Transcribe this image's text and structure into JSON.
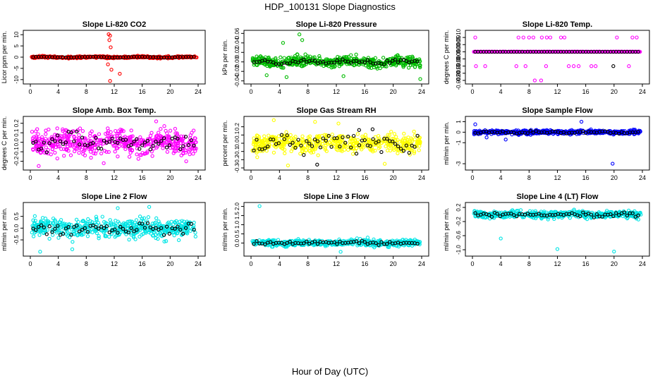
{
  "page": {
    "title": "HDP_100131  Slope Diagnostics",
    "xlabel": "Hour of Day (UTC)"
  },
  "chart_data": [
    {
      "type": "scatter",
      "title": "Slope Li-820 CO2",
      "ylabel": "Licor ppm per min.",
      "xlim": [
        0,
        24
      ],
      "ylim": [
        -11,
        11
      ],
      "xticks": [
        0,
        4,
        8,
        12,
        16,
        20,
        24
      ],
      "yticks": [
        -10,
        -5,
        0,
        5,
        10
      ],
      "ytick_labels": [
        "-10",
        "-5",
        "0",
        "5",
        "10"
      ],
      "color": "#ff0000",
      "spread": 0.3,
      "wave_amp": 0.15,
      "outliers": [
        [
          11.2,
          10.2
        ],
        [
          11.4,
          9.6
        ],
        [
          11.3,
          7.6
        ],
        [
          11.5,
          4.4
        ],
        [
          11.1,
          -3.2
        ],
        [
          11.6,
          -5.6
        ],
        [
          12.8,
          -7.4
        ],
        [
          11.4,
          -10.6
        ]
      ],
      "black_spread": 0.05
    },
    {
      "type": "scatter",
      "title": "Slope Li-820 Pressure",
      "ylabel": "kPa per min.",
      "xlim": [
        0,
        24
      ],
      "ylim": [
        -0.042,
        0.062
      ],
      "xticks": [
        0,
        4,
        8,
        12,
        16,
        20,
        24
      ],
      "yticks": [
        -0.04,
        -0.02,
        0.0,
        0.02,
        0.04,
        0.06
      ],
      "ytick_labels": [
        "-0.04",
        "-0.02",
        "0.00",
        "0.02",
        "0.04",
        "0.06"
      ],
      "color": "#00bb00",
      "spread": 0.008,
      "wave_amp": 0.002,
      "outliers": [
        [
          6.8,
          0.058
        ],
        [
          7.2,
          0.046
        ],
        [
          4.5,
          0.04
        ],
        [
          2.2,
          -0.028
        ],
        [
          5.0,
          -0.032
        ],
        [
          23.8,
          -0.036
        ],
        [
          13.0,
          -0.03
        ]
      ],
      "black_spread": 0.003
    },
    {
      "type": "scatter",
      "title": "Slope Li-820 Temp.",
      "ylabel": "degrees C per min.",
      "xlim": [
        0,
        24
      ],
      "ylim": [
        -0.0021,
        0.00135
      ],
      "xticks": [
        0,
        4,
        8,
        12,
        16,
        20,
        24
      ],
      "yticks": [
        -0.002,
        -0.0015,
        -0.001,
        -0.0005,
        0.0,
        0.0005,
        0.001
      ],
      "ytick_labels": [
        "-0.0020",
        "-0.0015",
        "-0.0010",
        "-0.0005",
        "0.0000",
        "0.0005",
        "0.0010"
      ],
      "color": "#ff00ff",
      "spread": 0.0,
      "wave_amp": 0.0,
      "outliers": [
        [
          0.4,
          0.001
        ],
        [
          6.5,
          0.001
        ],
        [
          7.2,
          0.001
        ],
        [
          8.0,
          0.001
        ],
        [
          8.6,
          0.001
        ],
        [
          9.8,
          0.001
        ],
        [
          10.5,
          0.001
        ],
        [
          11.0,
          0.001
        ],
        [
          12.5,
          0.001
        ],
        [
          13.0,
          0.001
        ],
        [
          20.4,
          0.001
        ],
        [
          22.6,
          0.001
        ],
        [
          23.2,
          0.001
        ],
        [
          0.5,
          -0.001
        ],
        [
          1.8,
          -0.001
        ],
        [
          6.2,
          -0.001
        ],
        [
          7.5,
          -0.001
        ],
        [
          10.4,
          -0.001
        ],
        [
          13.6,
          -0.001
        ],
        [
          14.3,
          -0.001
        ],
        [
          15.0,
          -0.001
        ],
        [
          16.8,
          -0.001
        ],
        [
          17.4,
          -0.001
        ],
        [
          22.1,
          -0.001
        ],
        [
          8.8,
          -0.002
        ],
        [
          9.7,
          -0.002
        ]
      ],
      "black_outliers": [
        [
          19.9,
          -0.001
        ]
      ],
      "black_spread": 0.0
    },
    {
      "type": "scatter",
      "title": "Slope Amb. Box Temp.",
      "ylabel": "degrees C per min.",
      "xlim": [
        0,
        24
      ],
      "ylim": [
        -0.27,
        0.25
      ],
      "xticks": [
        0,
        4,
        8,
        12,
        16,
        20,
        24
      ],
      "yticks": [
        -0.2,
        -0.1,
        0.0,
        0.1,
        0.2
      ],
      "ytick_labels": [
        "-0.2",
        "-0.1",
        "0.0",
        "0.1",
        "0.2"
      ],
      "color": "#ff00ff",
      "spread": 0.09,
      "wave_amp": 0.02,
      "outliers": [
        [
          1.2,
          -0.25
        ],
        [
          10.5,
          -0.22
        ],
        [
          22.3,
          -0.2
        ],
        [
          18.0,
          0.22
        ]
      ],
      "black_spread": 0.06
    },
    {
      "type": "scatter",
      "title": "Slope Gas Stream RH",
      "ylabel": "percent per min.",
      "xlim": [
        0,
        24
      ],
      "ylim": [
        -0.3,
        0.3
      ],
      "xticks": [
        0,
        4,
        8,
        12,
        16,
        20,
        24
      ],
      "yticks": [
        -0.3,
        -0.2,
        -0.1,
        0.0,
        0.1,
        0.2
      ],
      "ytick_labels": [
        "-0.3",
        "-0.2",
        "-0.1",
        "0.0",
        "0.1",
        "0.2"
      ],
      "color": "#ffff00",
      "spread": 0.08,
      "wave_amp": 0.02,
      "outliers": [
        [
          3.2,
          0.28
        ],
        [
          5.2,
          -0.27
        ],
        [
          9.0,
          0.26
        ],
        [
          18.8,
          -0.25
        ],
        [
          12.3,
          0.24
        ]
      ],
      "black_outliers": [
        [
          9.3,
          -0.26
        ],
        [
          17.1,
          0.17
        ],
        [
          15.2,
          0.16
        ]
      ],
      "black_spread": 0.08
    },
    {
      "type": "scatter",
      "title": "Slope Sample Flow",
      "ylabel": "ml/min per min.",
      "xlim": [
        0,
        24
      ],
      "ylim": [
        -3.4,
        1.3
      ],
      "xticks": [
        0,
        4,
        8,
        12,
        16,
        20,
        24
      ],
      "yticks": [
        -3,
        -1,
        0,
        1
      ],
      "ytick_labels": [
        "-3",
        "-1",
        "0",
        "1"
      ],
      "color": "#0000ff",
      "spread": 0.14,
      "wave_amp": 0.03,
      "outliers": [
        [
          19.8,
          -3.0
        ],
        [
          15.4,
          1.0
        ],
        [
          0.4,
          0.75
        ],
        [
          4.7,
          -0.7
        ],
        [
          2.0,
          -0.5
        ]
      ],
      "black_spread": 0.08
    },
    {
      "type": "scatter",
      "title": "Slope Line 2 Flow",
      "ylabel": "ml/min per min.",
      "xlim": [
        0,
        24
      ],
      "ylim": [
        -1.1,
        1.0
      ],
      "xticks": [
        0,
        4,
        8,
        12,
        16,
        20,
        24
      ],
      "yticks": [
        -0.5,
        0.0,
        0.5
      ],
      "ytick_labels": [
        "-0.5",
        "0.0",
        "0.5"
      ],
      "color": "#00e5e5",
      "spread": 0.27,
      "wave_amp": 0.05,
      "outliers": [
        [
          1.4,
          -1.0
        ],
        [
          17.0,
          0.9
        ],
        [
          12.5,
          0.85
        ],
        [
          6.0,
          -0.9
        ]
      ],
      "black_spread": 0.15
    },
    {
      "type": "scatter",
      "title": "Slope Line 3 Flow",
      "ylabel": "ml/min per min.",
      "xlim": [
        0,
        24
      ],
      "ylim": [
        -0.6,
        2.1
      ],
      "xticks": [
        0,
        4,
        8,
        12,
        16,
        20,
        24
      ],
      "yticks": [
        0.0,
        0.5,
        1.0,
        1.5,
        2.0
      ],
      "ytick_labels": [
        "0.0",
        "0.5",
        "1.0",
        "1.5",
        "2.0"
      ],
      "color": "#00e5e5",
      "spread": 0.12,
      "wave_amp": 0.03,
      "outliers": [
        [
          1.2,
          2.02
        ],
        [
          12.6,
          -0.48
        ],
        [
          16.4,
          0.3
        ]
      ],
      "black_spread": 0.08
    },
    {
      "type": "scatter",
      "title": "Slope Line 4 (LT) Flow",
      "ylabel": "ml/min per min.",
      "xlim": [
        0,
        24
      ],
      "ylim": [
        -1.12,
        0.28
      ],
      "xticks": [
        0,
        4,
        8,
        12,
        16,
        20,
        24
      ],
      "yticks": [
        -1.0,
        -0.6,
        -0.2,
        0.2
      ],
      "ytick_labels": [
        "-1.0",
        "-0.6",
        "-0.2",
        "0.2"
      ],
      "color": "#00e5e5",
      "spread": 0.07,
      "wave_amp": 0.02,
      "outliers": [
        [
          4.0,
          -0.68
        ],
        [
          12.0,
          -0.98
        ],
        [
          20.0,
          -1.05
        ],
        [
          8.1,
          -0.05
        ]
      ],
      "black_spread": 0.04
    }
  ]
}
